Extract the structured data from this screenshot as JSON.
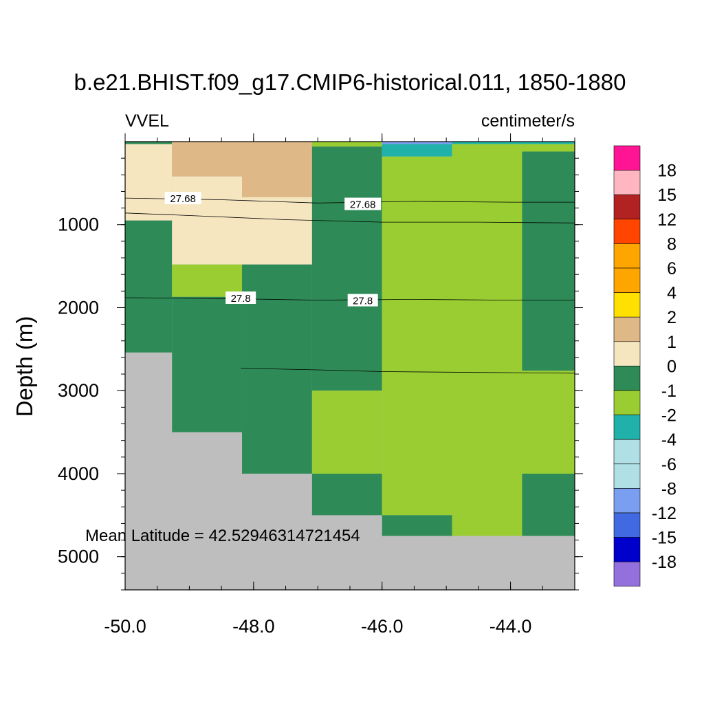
{
  "chart_data": {
    "type": "heatmap",
    "title": "b.e21.BHIST.f09_g17.CMIP6-historical.011, 1850-1880",
    "left_label": "VVEL",
    "right_label": "centimeter/s",
    "ylabel": "Depth (m)",
    "xlabel": "",
    "xlim": [
      -50.0,
      -43.0
    ],
    "ylim": [
      5400,
      0
    ],
    "x_ticks": [
      "-50.0",
      "-48.0",
      "-46.0",
      "-44.0"
    ],
    "y_ticks": [
      "1000",
      "2000",
      "3000",
      "4000",
      "5000"
    ],
    "annotation": "Mean Latitude = 42.52946314721454",
    "legend": {
      "labels": [
        "18",
        "15",
        "12",
        "8",
        "6",
        "4",
        "2",
        "1",
        "0",
        "-1",
        "-2",
        "-4",
        "-6",
        "-8",
        "-12",
        "-15",
        "-18"
      ],
      "colors": [
        "#ff1493",
        "#ffb6c1",
        "#b22222",
        "#ff4500",
        "#ffa500",
        "#ffa500",
        "#ffe000",
        "#deb887",
        "#f5e6c0",
        "#2e8b57",
        "#9acd32",
        "#20b2aa",
        "#b0dfe5",
        "#b0dfe5",
        "#7b9ff0",
        "#4169e1",
        "#0000cd",
        "#9370db"
      ]
    },
    "land_color": "#bebebe",
    "cells": [
      {
        "x0": -50.0,
        "x1": -49.27,
        "d0": 0,
        "d1": 30,
        "value": "0"
      },
      {
        "x0": -50.0,
        "x1": -49.27,
        "d0": 30,
        "d1": 950,
        "value": "1"
      },
      {
        "x0": -50.0,
        "x1": -49.27,
        "d0": 950,
        "d1": 2540,
        "value": "0"
      },
      {
        "x0": -49.27,
        "x1": -48.18,
        "d0": 0,
        "d1": 420,
        "value": "2"
      },
      {
        "x0": -49.27,
        "x1": -48.18,
        "d0": 420,
        "d1": 1480,
        "value": "1"
      },
      {
        "x0": -49.27,
        "x1": -48.18,
        "d0": 1480,
        "d1": 1870,
        "value": "-1"
      },
      {
        "x0": -49.27,
        "x1": -48.18,
        "d0": 1870,
        "d1": 3500,
        "value": "0"
      },
      {
        "x0": -48.18,
        "x1": -47.09,
        "d0": 0,
        "d1": 670,
        "value": "2"
      },
      {
        "x0": -48.18,
        "x1": -47.09,
        "d0": 670,
        "d1": 1480,
        "value": "1"
      },
      {
        "x0": -48.18,
        "x1": -47.09,
        "d0": 1480,
        "d1": 4000,
        "value": "0"
      },
      {
        "x0": -47.09,
        "x1": -46.0,
        "d0": 0,
        "d1": 60,
        "value": "-1"
      },
      {
        "x0": -47.09,
        "x1": -46.0,
        "d0": 60,
        "d1": 3000,
        "value": "0"
      },
      {
        "x0": -47.09,
        "x1": -46.0,
        "d0": 3000,
        "d1": 4000,
        "value": "-1"
      },
      {
        "x0": -47.09,
        "x1": -46.0,
        "d0": 4000,
        "d1": 4500,
        "value": "0"
      },
      {
        "x0": -46.0,
        "x1": -44.91,
        "d0": 0,
        "d1": 30,
        "value": "-8"
      },
      {
        "x0": -46.0,
        "x1": -44.91,
        "d0": 30,
        "d1": 180,
        "value": "-2"
      },
      {
        "x0": -46.0,
        "x1": -44.91,
        "d0": 180,
        "d1": 4500,
        "value": "-1"
      },
      {
        "x0": -46.0,
        "x1": -44.91,
        "d0": 4500,
        "d1": 4750,
        "value": "0"
      },
      {
        "x0": -44.91,
        "x1": -43.82,
        "d0": 0,
        "d1": 30,
        "value": "-2"
      },
      {
        "x0": -44.91,
        "x1": -43.82,
        "d0": 30,
        "d1": 4750,
        "value": "-1"
      },
      {
        "x0": -43.82,
        "x1": -43.0,
        "d0": 0,
        "d1": 30,
        "value": "-2"
      },
      {
        "x0": -43.82,
        "x1": -43.0,
        "d0": 30,
        "d1": 120,
        "value": "-1"
      },
      {
        "x0": -43.82,
        "x1": -43.0,
        "d0": 120,
        "d1": 2760,
        "value": "0"
      },
      {
        "x0": -43.82,
        "x1": -43.0,
        "d0": 2760,
        "d1": 4000,
        "value": "-1"
      },
      {
        "x0": -43.82,
        "x1": -43.0,
        "d0": 4000,
        "d1": 4750,
        "value": "0"
      }
    ],
    "contours": [
      {
        "label": "27.68",
        "label_positions": [
          [
            -49.1,
            680
          ],
          [
            -46.3,
            750
          ]
        ],
        "points": [
          [
            -50.0,
            680
          ],
          [
            -48.5,
            700
          ],
          [
            -47.0,
            740
          ],
          [
            -45.5,
            720
          ],
          [
            -44.0,
            730
          ],
          [
            -43.0,
            730
          ]
        ]
      },
      {
        "label": "",
        "label_positions": [],
        "points": [
          [
            -50.0,
            860
          ],
          [
            -49.0,
            890
          ],
          [
            -47.5,
            940
          ],
          [
            -46.0,
            970
          ],
          [
            -44.5,
            970
          ],
          [
            -43.0,
            980
          ]
        ]
      },
      {
        "label": "27.8",
        "label_positions": [
          [
            -48.2,
            1880
          ],
          [
            -46.3,
            1910
          ]
        ],
        "points": [
          [
            -50.0,
            1880
          ],
          [
            -48.5,
            1890
          ],
          [
            -47.0,
            1910
          ],
          [
            -45.5,
            1900
          ],
          [
            -44.0,
            1910
          ],
          [
            -43.0,
            1910
          ]
        ]
      },
      {
        "label": "",
        "label_positions": [],
        "points": [
          [
            -48.2,
            2730
          ],
          [
            -47.0,
            2750
          ],
          [
            -46.0,
            2770
          ],
          [
            -44.5,
            2780
          ],
          [
            -43.0,
            2790
          ]
        ]
      }
    ]
  }
}
